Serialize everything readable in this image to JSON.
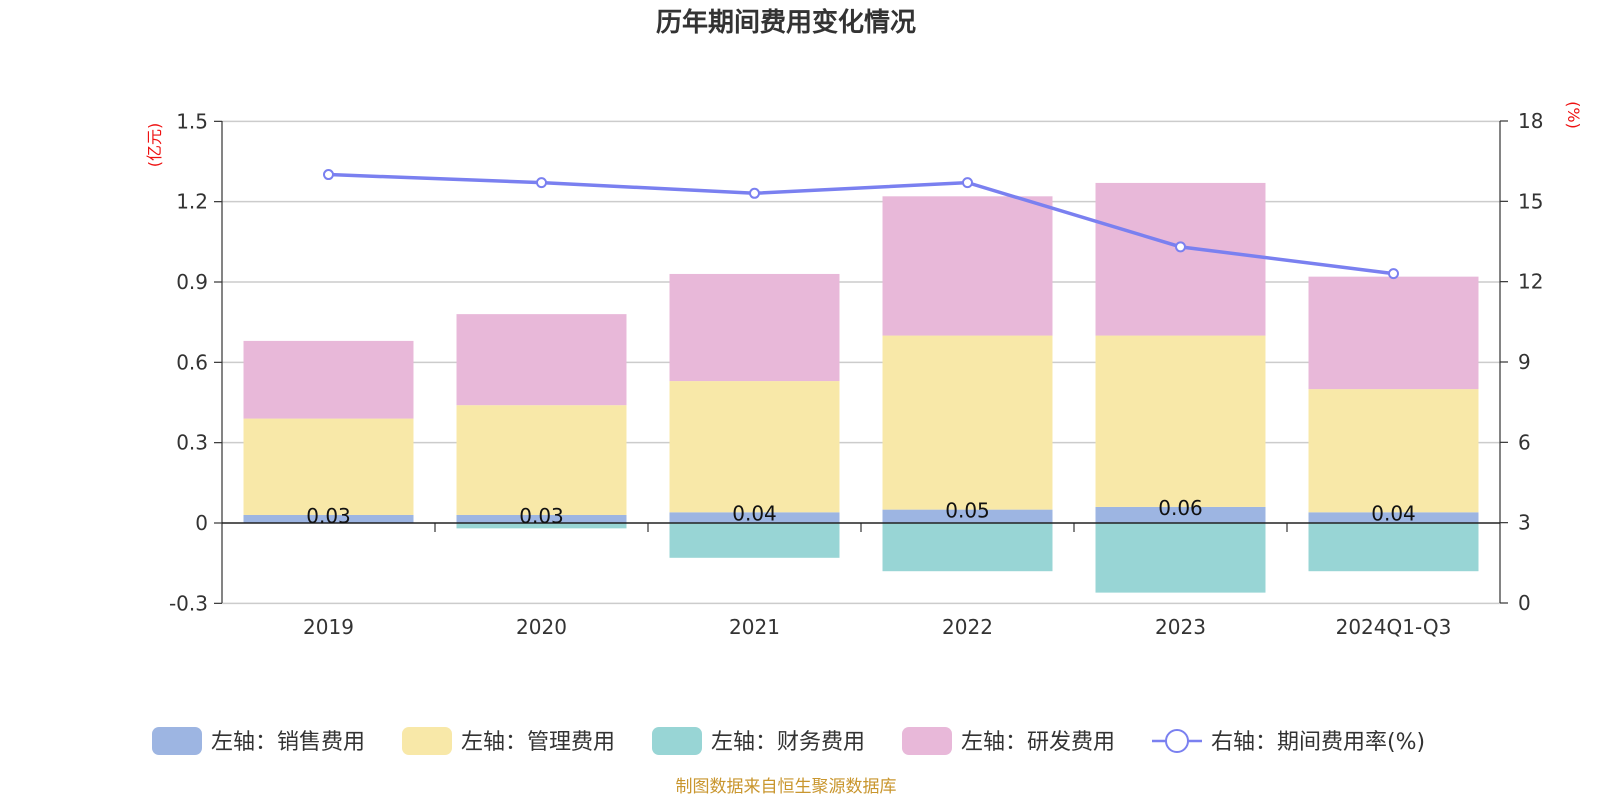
{
  "chart_data": {
    "type": "bar",
    "title": "历年期间费用变化情况",
    "categories": [
      "2019",
      "2020",
      "2021",
      "2022",
      "2023",
      "2024Q1-Q3"
    ],
    "left_axis": {
      "unit": "(亿元)",
      "ylim": [
        -0.3,
        1.5
      ],
      "ticks": [
        -0.3,
        0,
        0.3,
        0.6,
        0.9,
        1.2,
        1.5
      ],
      "tick_labels": [
        "-0.3",
        "0",
        "0.3",
        "0.6",
        "0.9",
        "1.2",
        "1.5"
      ]
    },
    "right_axis": {
      "unit": "(%)",
      "ylim": [
        0,
        18
      ],
      "ticks": [
        0,
        3,
        6,
        9,
        12,
        15,
        18
      ],
      "tick_labels": [
        "0",
        "3",
        "6",
        "9",
        "12",
        "15",
        "18"
      ]
    },
    "series": [
      {
        "name": "左轴：销售费用",
        "axis": "left",
        "kind": "bar",
        "color": "#9db5e2",
        "values": [
          0.03,
          0.03,
          0.04,
          0.05,
          0.06,
          0.04
        ],
        "labels": [
          "0.03",
          "0.03",
          "0.04",
          "0.05",
          "0.06",
          "0.04"
        ]
      },
      {
        "name": "左轴：管理费用",
        "axis": "left",
        "kind": "bar",
        "color": "#f8e8a8",
        "values": [
          0.36,
          0.41,
          0.49,
          0.65,
          0.64,
          0.46
        ]
      },
      {
        "name": "左轴：财务费用",
        "axis": "left",
        "kind": "bar",
        "color": "#98d5d5",
        "values": [
          0.0,
          -0.02,
          -0.13,
          -0.18,
          -0.26,
          -0.18
        ]
      },
      {
        "name": "左轴：研发费用",
        "axis": "left",
        "kind": "bar",
        "color": "#e8b8d9",
        "values": [
          0.29,
          0.34,
          0.4,
          0.52,
          0.57,
          0.42
        ]
      },
      {
        "name": "右轴：期间费用率(%)",
        "axis": "right",
        "kind": "line",
        "color": "#7a80f0",
        "values": [
          16.0,
          15.7,
          15.3,
          15.7,
          13.3,
          12.3
        ]
      }
    ],
    "legend_position": "bottom",
    "grid": true
  },
  "source_note": "制图数据来自恒生聚源数据库"
}
